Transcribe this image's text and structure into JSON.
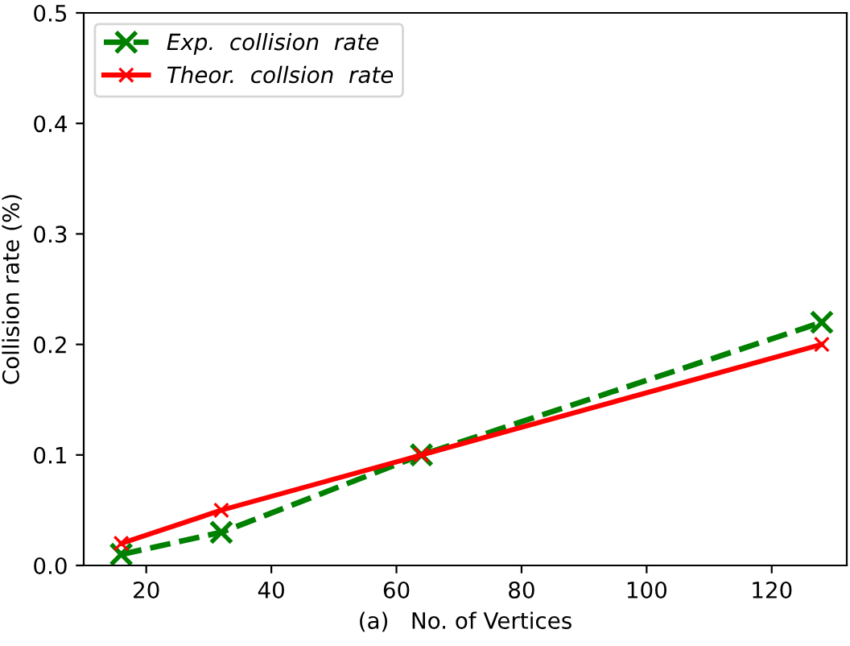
{
  "chart_data": {
    "type": "line",
    "xlabel": "(a)   No. of Vertices",
    "ylabel": "Collision rate (%)",
    "x": [
      16,
      32,
      64,
      128
    ],
    "series": [
      {
        "name": "Exp.  collision  rate",
        "color": "#008000",
        "values": [
          0.01,
          0.03,
          0.1,
          0.22
        ],
        "line_style": "dashed"
      },
      {
        "name": "Theor.  collsion  rate",
        "color": "#ff0000",
        "values": [
          0.02,
          0.05,
          0.1,
          0.2
        ],
        "line_style": "solid"
      }
    ],
    "marker": "cross",
    "legend": "top left",
    "grid": false,
    "xlim": [
      10,
      132
    ],
    "xticks": [
      20,
      40,
      60,
      80,
      100,
      120
    ],
    "ylim": [
      0,
      0.5
    ],
    "yticks": [
      {
        "value": 0,
        "label": "0.0"
      },
      {
        "value": 0.1,
        "label": "0.1"
      },
      {
        "value": 0.2,
        "label": "0.2"
      },
      {
        "value": 0.3,
        "label": "0.3"
      },
      {
        "value": 0.4,
        "label": "0.4"
      },
      {
        "value": 0.5,
        "label": "0.5"
      }
    ]
  }
}
